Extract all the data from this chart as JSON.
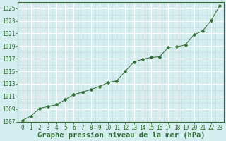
{
  "x": [
    0,
    1,
    2,
    3,
    4,
    5,
    6,
    7,
    8,
    9,
    10,
    11,
    12,
    13,
    14,
    15,
    16,
    17,
    18,
    19,
    20,
    21,
    22,
    23
  ],
  "y": [
    1007.2,
    1007.9,
    1009.1,
    1009.4,
    1009.7,
    1010.5,
    1011.3,
    1011.7,
    1012.1,
    1012.6,
    1013.2,
    1013.5,
    1015.0,
    1016.5,
    1016.9,
    1017.2,
    1017.3,
    1018.8,
    1018.9,
    1019.2,
    1020.8,
    1021.4,
    1023.1,
    1025.4
  ],
  "line_color": "#2d6a2d",
  "marker": "D",
  "marker_size": 2.5,
  "bg_color": "#d4eef0",
  "major_grid_color": "#ffffff",
  "minor_grid_color": "#c8dde0",
  "xlabel": "Graphe pression niveau de la mer (hPa)",
  "xlim": [
    -0.5,
    23.5
  ],
  "ylim": [
    1007,
    1026
  ],
  "yticks": [
    1007,
    1009,
    1011,
    1013,
    1015,
    1017,
    1019,
    1021,
    1023,
    1025
  ],
  "xticks": [
    0,
    1,
    2,
    3,
    4,
    5,
    6,
    7,
    8,
    9,
    10,
    11,
    12,
    13,
    14,
    15,
    16,
    17,
    18,
    19,
    20,
    21,
    22,
    23
  ],
  "tick_fontsize": 5.5,
  "xlabel_fontsize": 7.5,
  "tick_color": "#2d6a2d",
  "xlabel_color": "#2d6a2d",
  "xlabel_fontweight": "bold",
  "line_width": 0.7,
  "spine_color": "#2d6a2d"
}
